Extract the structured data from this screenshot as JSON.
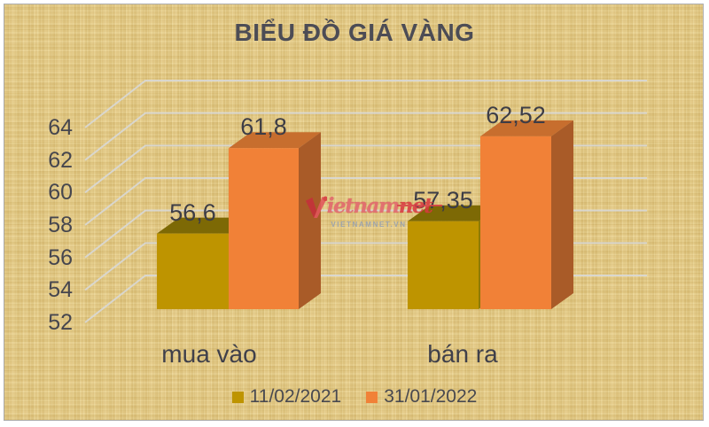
{
  "chart_data": {
    "type": "bar",
    "style": "3d-column",
    "title": "BIỂU ĐỒ GIÁ VÀNG",
    "categories": [
      "mua vào",
      "bán ra"
    ],
    "series": [
      {
        "name": "11/02/2021",
        "values": [
          56.6,
          57.35
        ],
        "value_labels": [
          "56,6",
          "57,35"
        ],
        "color": "#be9400",
        "color_top": "#7d6905",
        "color_side": "#8f7a06"
      },
      {
        "name": "31/01/2022",
        "values": [
          61.8,
          62.52
        ],
        "value_labels": [
          "61,8",
          "62,52"
        ],
        "color": "#f18137",
        "color_top": "#c76e2e",
        "color_side": "#a95b28"
      }
    ],
    "yticks": [
      "64",
      "62",
      "60",
      "58",
      "56",
      "54",
      "52"
    ],
    "ytick_values": [
      64,
      62,
      60,
      58,
      56,
      54,
      52
    ],
    "ylim": [
      52,
      64
    ],
    "grid": true,
    "legend_position": "bottom"
  },
  "watermark": {
    "logo_prefix": "ietnam",
    "logo_suffix": "net",
    "sub_text": "VIETNAMNET.VN"
  },
  "colors": {
    "background": "#e6cc86",
    "panel_border": "#aeaeae",
    "text": "#46464e",
    "gridline": "#d8d8d6",
    "watermark_red": "#d93a40",
    "watermark_gray": "#94a0b3"
  }
}
